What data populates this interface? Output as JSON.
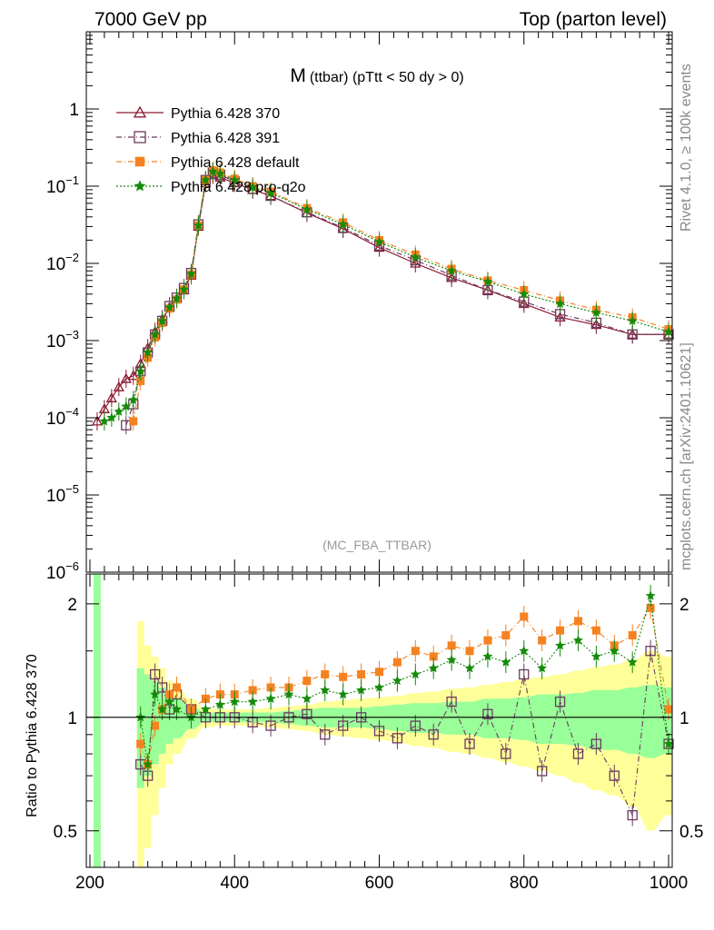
{
  "header": {
    "left": "7000 GeV pp",
    "right": "Top (parton level)"
  },
  "side_labels": {
    "rivet": "Rivet 4.1.0, ≥ 100k events",
    "mcplots": "mcplots.cern.ch [arXiv:2401.10621]"
  },
  "colors": {
    "p370": "#8b1a2e",
    "p391": "#6b3a5e",
    "pdefault": "#f58220",
    "pq2o": "#158b0a",
    "band_inner": "#99ff99",
    "band_outer": "#ffff99"
  },
  "chart_data": [
    {
      "type": "line",
      "title_main": "M",
      "title_sub": "(ttbar) (pTtt < 50 dy > 0)",
      "watermark": "(MC_FBA_TTBAR)",
      "yscale": "log",
      "xlim": [
        195,
        1005
      ],
      "ylim": [
        1e-06,
        10
      ],
      "ytick_values": [
        1e-06,
        1e-05,
        0.0001,
        0.001,
        0.01,
        0.1,
        1
      ],
      "ytick_bases": [
        "10",
        "10",
        "10",
        "10",
        "10",
        "10",
        "1"
      ],
      "ytick_exps": [
        "−6",
        "−5",
        "−4",
        "−3",
        "−2",
        "−1",
        ""
      ],
      "legend_position": "top-left",
      "x": [
        210,
        220,
        230,
        240,
        250,
        260,
        270,
        280,
        290,
        300,
        310,
        320,
        330,
        340,
        350,
        360,
        370,
        380,
        400,
        425,
        450,
        500,
        550,
        600,
        650,
        700,
        750,
        800,
        850,
        900,
        950,
        1000
      ],
      "series": [
        {
          "name": "Pythia 6.428 370",
          "marker": "triangle-open",
          "dash": "",
          "color_key": "p370",
          "values": [
            9e-05,
            0.00013,
            0.00018,
            0.00025,
            0.00032,
            0.00035,
            0.0005,
            0.0008,
            0.0013,
            0.0019,
            0.0027,
            0.0035,
            0.0045,
            0.007,
            0.03,
            0.11,
            0.14,
            0.13,
            0.11,
            0.09,
            0.075,
            0.045,
            0.028,
            0.016,
            0.01,
            0.0065,
            0.0045,
            0.003,
            0.002,
            0.0016,
            0.0012,
            0.0012
          ]
        },
        {
          "name": "Pythia 6.428 391",
          "marker": "square-open",
          "dash": "6,3,1,3",
          "color_key": "p391",
          "values": [
            null,
            null,
            null,
            null,
            8e-05,
            0.00015,
            0.0004,
            0.0007,
            0.0012,
            0.0018,
            0.0028,
            0.0036,
            0.0048,
            0.0075,
            0.032,
            0.12,
            0.15,
            0.14,
            0.115,
            0.092,
            0.075,
            0.046,
            0.029,
            0.017,
            0.011,
            0.007,
            0.0045,
            0.0032,
            0.0022,
            0.0017,
            0.0012,
            0.0012
          ]
        },
        {
          "name": "Pythia 6.428 default",
          "marker": "square-filled",
          "dash": "6,3,1,3",
          "color_key": "pdefault",
          "values": [
            null,
            null,
            null,
            null,
            null,
            9e-05,
            0.0003,
            0.0006,
            0.0011,
            0.0017,
            0.0026,
            0.0034,
            0.0046,
            0.0072,
            0.031,
            0.12,
            0.16,
            0.15,
            0.125,
            0.1,
            0.085,
            0.052,
            0.034,
            0.02,
            0.013,
            0.0085,
            0.006,
            0.0045,
            0.0033,
            0.0025,
            0.002,
            0.0014
          ]
        },
        {
          "name": "Pythia 6.428 pro-q2o",
          "marker": "star-filled",
          "dash": "2,2",
          "color_key": "pq2o",
          "values": [
            null,
            9e-05,
            0.0001,
            0.00012,
            0.00014,
            0.00017,
            0.0004,
            0.0007,
            0.0012,
            0.0018,
            0.0027,
            0.0035,
            0.0046,
            0.0073,
            0.031,
            0.12,
            0.155,
            0.145,
            0.12,
            0.097,
            0.082,
            0.05,
            0.032,
            0.019,
            0.012,
            0.008,
            0.0058,
            0.004,
            0.003,
            0.0023,
            0.0018,
            0.0013
          ]
        }
      ]
    },
    {
      "type": "line",
      "ylabel": "Ratio to Pythia 6.428 370",
      "xlim": [
        195,
        1005
      ],
      "ylim": [
        0.4,
        2.4
      ],
      "ytick_values": [
        0.5,
        1,
        2
      ],
      "ytick_labels": [
        "0.5",
        "1",
        "2"
      ],
      "xtick_values": [
        200,
        400,
        600,
        800,
        1000
      ],
      "xtick_labels": [
        "200",
        "400",
        "600",
        "800",
        "1000"
      ],
      "reference_line": 1,
      "x": [
        270,
        280,
        290,
        300,
        310,
        320,
        340,
        360,
        380,
        400,
        425,
        450,
        475,
        500,
        525,
        550,
        575,
        600,
        625,
        650,
        675,
        700,
        725,
        750,
        775,
        800,
        825,
        850,
        875,
        900,
        925,
        950,
        975,
        1000
      ],
      "band_inner_half": [
        0.35,
        0.3,
        0.25,
        0.2,
        0.15,
        0.12,
        0.07,
        0.03,
        0.03,
        0.03,
        0.03,
        0.03,
        0.04,
        0.05,
        0.06,
        0.06,
        0.06,
        0.07,
        0.08,
        0.09,
        0.09,
        0.1,
        0.1,
        0.12,
        0.12,
        0.13,
        0.15,
        0.15,
        0.16,
        0.18,
        0.18,
        0.2,
        0.22,
        0.2
      ],
      "band_outer_half": [
        0.8,
        0.55,
        0.45,
        0.35,
        0.25,
        0.2,
        0.12,
        0.06,
        0.05,
        0.05,
        0.05,
        0.06,
        0.07,
        0.08,
        0.1,
        0.11,
        0.12,
        0.13,
        0.14,
        0.16,
        0.17,
        0.19,
        0.2,
        0.22,
        0.24,
        0.26,
        0.28,
        0.3,
        0.33,
        0.36,
        0.38,
        0.42,
        0.5,
        0.45
      ],
      "series": [
        {
          "name": "Pythia 6.428 391",
          "color_key": "p391",
          "marker": "square-open",
          "dash": "6,3,1,3",
          "values": [
            0.75,
            0.7,
            1.3,
            1.2,
            1.05,
            1.15,
            1.05,
            1.0,
            1.0,
            1.0,
            0.97,
            0.95,
            1.0,
            1.02,
            0.9,
            0.95,
            1.0,
            0.92,
            0.88,
            0.95,
            0.9,
            1.1,
            0.85,
            1.02,
            0.8,
            1.3,
            0.72,
            1.1,
            0.8,
            0.85,
            0.7,
            0.55,
            1.5,
            0.85
          ]
        },
        {
          "name": "Pythia 6.428 default",
          "color_key": "pdefault",
          "marker": "square-filled",
          "dash": "6,3,1,3",
          "values": [
            0.85,
            0.75,
            0.95,
            1.05,
            1.15,
            1.2,
            1.05,
            1.12,
            1.15,
            1.15,
            1.18,
            1.2,
            1.2,
            1.25,
            1.3,
            1.28,
            1.3,
            1.32,
            1.4,
            1.5,
            1.45,
            1.55,
            1.5,
            1.6,
            1.65,
            1.85,
            1.6,
            1.7,
            1.8,
            1.7,
            1.55,
            1.65,
            1.95,
            1.05
          ]
        },
        {
          "name": "Pythia 6.428 pro-q2o",
          "color_key": "pq2o",
          "marker": "star-filled",
          "dash": "2,2",
          "values": [
            1.0,
            0.75,
            1.15,
            1.05,
            1.1,
            1.05,
            1.0,
            1.05,
            1.08,
            1.1,
            1.1,
            1.12,
            1.15,
            1.12,
            1.18,
            1.15,
            1.18,
            1.2,
            1.25,
            1.3,
            1.35,
            1.42,
            1.35,
            1.45,
            1.4,
            1.5,
            1.35,
            1.55,
            1.6,
            1.45,
            1.5,
            1.4,
            2.1,
            0.85
          ]
        }
      ]
    }
  ]
}
